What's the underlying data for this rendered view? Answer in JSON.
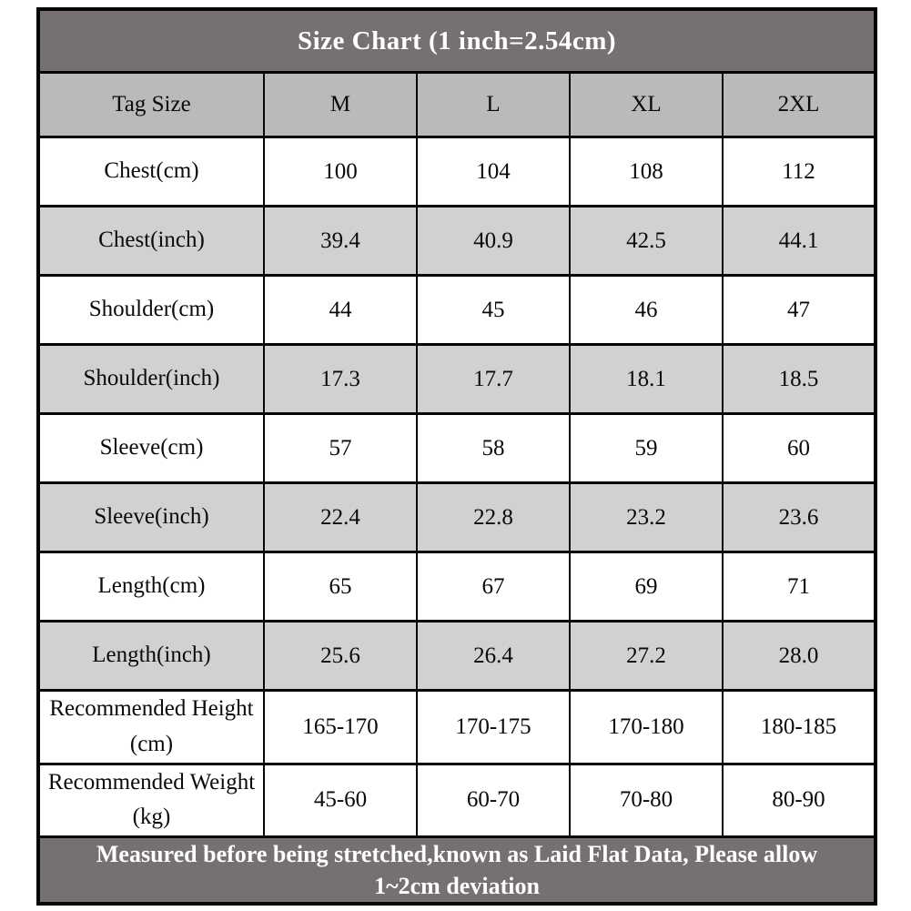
{
  "title": "Size Chart (1 inch=2.54cm)",
  "footer_note": "Measured before being stretched,known as Laid Flat Data, Please allow 1~2cm deviation",
  "columns": [
    "Tag Size",
    "M",
    "L",
    "XL",
    "2XL"
  ],
  "rows": [
    {
      "label": "Chest(cm)",
      "values": [
        "100",
        "104",
        "108",
        "112"
      ]
    },
    {
      "label": "Chest(inch)",
      "values": [
        "39.4",
        "40.9",
        "42.5",
        "44.1"
      ]
    },
    {
      "label": "Shoulder(cm)",
      "values": [
        "44",
        "45",
        "46",
        "47"
      ]
    },
    {
      "label": "Shoulder(inch)",
      "values": [
        "17.3",
        "17.7",
        "18.1",
        "18.5"
      ]
    },
    {
      "label": "Sleeve(cm)",
      "values": [
        "57",
        "58",
        "59",
        "60"
      ]
    },
    {
      "label": "Sleeve(inch)",
      "values": [
        "22.4",
        "22.8",
        "23.2",
        "23.6"
      ]
    },
    {
      "label": "Length(cm)",
      "values": [
        "65",
        "67",
        "69",
        "71"
      ]
    },
    {
      "label": "Length(inch)",
      "values": [
        "25.6",
        "26.4",
        "27.2",
        "28.0"
      ]
    },
    {
      "label": "Recommended Height (cm)",
      "values": [
        "165-170",
        "170-175",
        "170-180",
        "180-185"
      ]
    },
    {
      "label": "Recommended Weight (kg)",
      "values": [
        "45-60",
        "60-70",
        "70-80",
        "80-90"
      ]
    }
  ],
  "colors": {
    "header_background": "#767070",
    "header_text": "#ffffff",
    "tag_row_background": "#bcb9b9",
    "shaded_row_background": "#d3d0d0",
    "plain_row_background": "#ffffff",
    "border": "#060606",
    "body_text": "#0a0a0a"
  },
  "chart_data": {
    "type": "table",
    "title": "Size Chart (1 inch=2.54cm)",
    "columns": [
      "Tag Size",
      "M",
      "L",
      "XL",
      "2XL"
    ],
    "rows": [
      [
        "Chest(cm)",
        "100",
        "104",
        "108",
        "112"
      ],
      [
        "Chest(inch)",
        "39.4",
        "40.9",
        "42.5",
        "44.1"
      ],
      [
        "Shoulder(cm)",
        "44",
        "45",
        "46",
        "47"
      ],
      [
        "Shoulder(inch)",
        "17.3",
        "17.7",
        "18.1",
        "18.5"
      ],
      [
        "Sleeve(cm)",
        "57",
        "58",
        "59",
        "60"
      ],
      [
        "Sleeve(inch)",
        "22.4",
        "22.8",
        "23.2",
        "23.6"
      ],
      [
        "Length(cm)",
        "65",
        "67",
        "69",
        "71"
      ],
      [
        "Length(inch)",
        "25.6",
        "26.4",
        "27.2",
        "28.0"
      ],
      [
        "Recommended Height (cm)",
        "165-170",
        "170-175",
        "170-180",
        "180-185"
      ],
      [
        "Recommended Weight (kg)",
        "45-60",
        "60-70",
        "70-80",
        "80-90"
      ]
    ],
    "footnote": "Measured before being stretched,known as Laid Flat Data, Please allow 1~2cm deviation"
  }
}
